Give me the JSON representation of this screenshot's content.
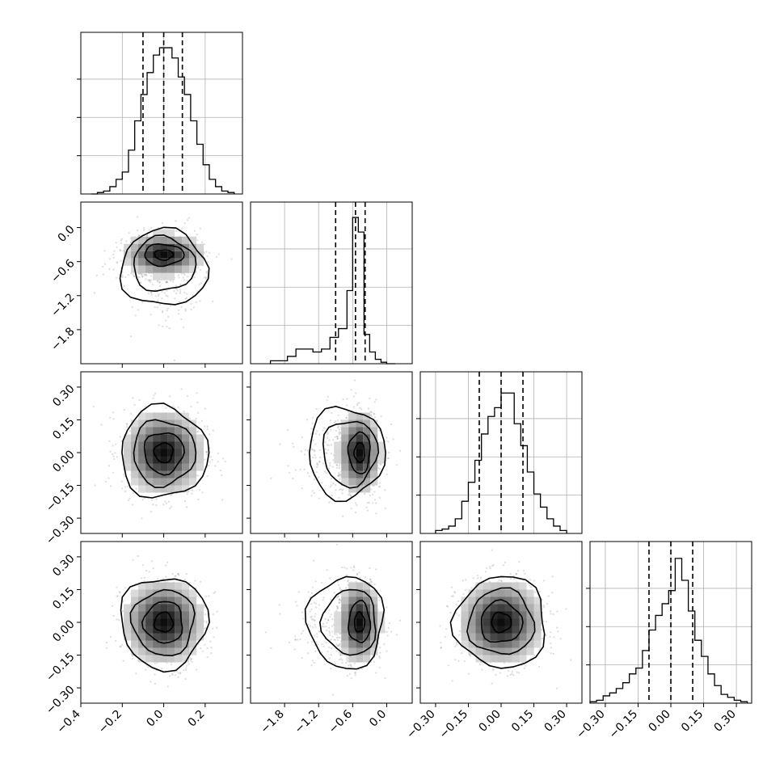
{
  "chart_data": {
    "type": "corner",
    "n_params": 4,
    "grid": true,
    "diag_ylim": [
      0,
      1.05
    ],
    "params": [
      {
        "range": [
          -0.4,
          0.38
        ],
        "ticks": [
          -0.4,
          -0.2,
          0.0,
          0.2
        ],
        "ticklabels": [
          "−0.4",
          "−0.2",
          "0.0",
          "0.2"
        ],
        "mean": 0.0,
        "sd": 0.1,
        "quantiles": [
          -0.1,
          0.0,
          0.09
        ]
      },
      {
        "range": [
          -2.4,
          0.45
        ],
        "ticks": [
          -1.8,
          -1.2,
          -0.6,
          0.0
        ],
        "ticklabels": [
          "−1.8",
          "−1.2",
          "−0.6",
          "0.0"
        ],
        "mean": -0.48,
        "sd": 0.2,
        "quantiles": [
          -0.9,
          -0.55,
          -0.38
        ]
      },
      {
        "range": [
          -0.37,
          0.37
        ],
        "ticks": [
          -0.3,
          -0.15,
          0.0,
          0.15,
          0.3
        ],
        "ticklabels": [
          "−0.30",
          "−0.15",
          "0.00",
          "0.15",
          "0.30"
        ],
        "mean": 0.0,
        "sd": 0.1,
        "quantiles": [
          -0.1,
          0.0,
          0.1
        ]
      },
      {
        "range": [
          -0.37,
          0.37
        ],
        "ticks": [
          -0.3,
          -0.15,
          0.0,
          0.15,
          0.3
        ],
        "ticklabels": [
          "−0.30",
          "−0.15",
          "0.00",
          "0.15",
          "0.30"
        ],
        "mean": 0.0,
        "sd": 0.1,
        "quantiles": [
          -0.1,
          0.0,
          0.1
        ]
      }
    ],
    "histograms": [
      {
        "param": 0,
        "bins": [
          -0.35,
          -0.32,
          -0.29,
          -0.26,
          -0.23,
          -0.2,
          -0.17,
          -0.14,
          -0.11,
          -0.08,
          -0.05,
          -0.02,
          0.01,
          0.04,
          0.07,
          0.1,
          0.13,
          0.16,
          0.19,
          0.22,
          0.25,
          0.28,
          0.31,
          0.34
        ],
        "counts": [
          0.0,
          0.01,
          0.02,
          0.05,
          0.1,
          0.15,
          0.3,
          0.5,
          0.68,
          0.83,
          0.95,
          1.0,
          1.0,
          0.93,
          0.8,
          0.68,
          0.5,
          0.34,
          0.2,
          0.1,
          0.05,
          0.02,
          0.01
        ]
      },
      {
        "param": 1,
        "bins": [
          -2.05,
          -1.9,
          -1.75,
          -1.6,
          -1.45,
          -1.3,
          -1.15,
          -1.0,
          -0.85,
          -0.7,
          -0.6,
          -0.5,
          -0.4,
          -0.3,
          -0.2,
          -0.1,
          0.0,
          0.15
        ],
        "counts": [
          0.02,
          0.02,
          0.05,
          0.1,
          0.1,
          0.08,
          0.1,
          0.18,
          0.24,
          0.5,
          1.0,
          0.9,
          0.2,
          0.08,
          0.03,
          0.01,
          0.0
        ]
      },
      {
        "param": 2,
        "bins": [
          -0.3,
          -0.27,
          -0.24,
          -0.21,
          -0.18,
          -0.15,
          -0.12,
          -0.09,
          -0.06,
          -0.03,
          0.0,
          0.03,
          0.06,
          0.09,
          0.12,
          0.15,
          0.18,
          0.21,
          0.24,
          0.27,
          0.3
        ],
        "counts": [
          0.02,
          0.03,
          0.05,
          0.1,
          0.22,
          0.35,
          0.5,
          0.68,
          0.8,
          0.86,
          0.96,
          0.96,
          0.75,
          0.6,
          0.42,
          0.27,
          0.18,
          0.1,
          0.05,
          0.02
        ]
      },
      {
        "param": 3,
        "bins": [
          -0.37,
          -0.34,
          -0.31,
          -0.28,
          -0.25,
          -0.22,
          -0.19,
          -0.16,
          -0.13,
          -0.1,
          -0.07,
          -0.04,
          -0.01,
          0.02,
          0.05,
          0.08,
          0.11,
          0.14,
          0.17,
          0.2,
          0.23,
          0.26,
          0.29,
          0.32,
          0.35
        ],
        "counts": [
          0.01,
          0.02,
          0.05,
          0.07,
          0.1,
          0.14,
          0.2,
          0.24,
          0.36,
          0.5,
          0.6,
          0.68,
          0.77,
          0.99,
          0.84,
          0.63,
          0.43,
          0.32,
          0.2,
          0.12,
          0.06,
          0.04,
          0.02,
          0.01
        ]
      }
    ],
    "pairs": [
      {
        "x": 0,
        "y": 1,
        "corr": 0.0,
        "tail": true
      },
      {
        "x": 0,
        "y": 2,
        "corr": 0.0,
        "tail": false
      },
      {
        "x": 1,
        "y": 2,
        "corr": 0.0,
        "tail": true
      },
      {
        "x": 0,
        "y": 3,
        "corr": 0.0,
        "tail": false
      },
      {
        "x": 1,
        "y": 3,
        "corr": 0.0,
        "tail": true
      },
      {
        "x": 2,
        "y": 3,
        "corr": 0.0,
        "tail": false
      }
    ]
  }
}
